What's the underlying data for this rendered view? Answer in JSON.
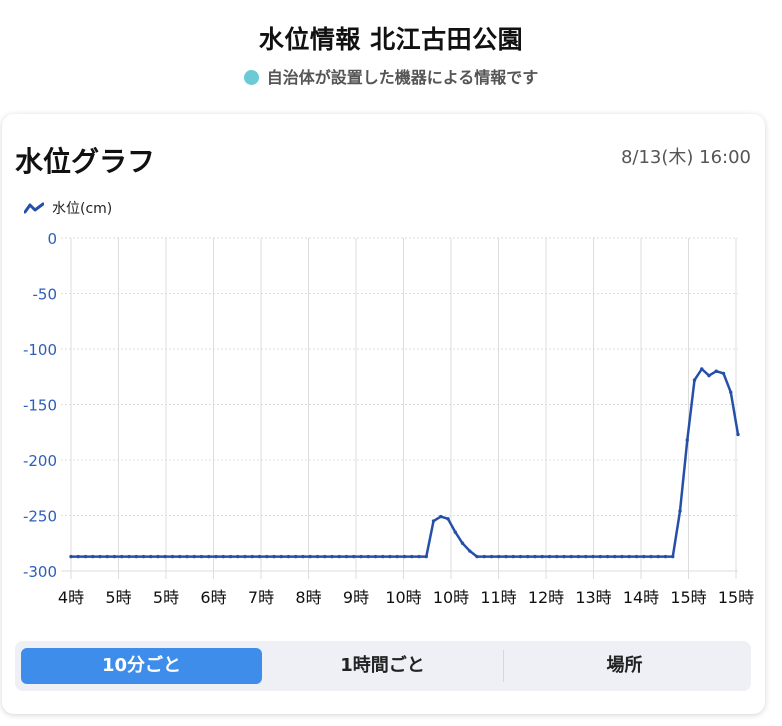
{
  "header": {
    "title": "水位情報 北江古田公園",
    "subtitle": "自治体が設置した機器による情報です",
    "dot_color": "#6cc9d6"
  },
  "card": {
    "title": "水位グラフ",
    "timestamp": "8/13(木) 16:00"
  },
  "tabs": [
    {
      "label": "10分ごと",
      "active": true
    },
    {
      "label": "1時間ごと",
      "active": false
    },
    {
      "label": "場所",
      "active": false
    }
  ],
  "chart_data": {
    "type": "line",
    "legend": "水位(cm)",
    "line_color": "#2650a8",
    "y_tick_color": "#2c5fb8",
    "ylim": [
      -300,
      0
    ],
    "yticks": [
      0,
      -50,
      -100,
      -150,
      -200,
      -250,
      -300
    ],
    "ytick_labels": [
      "0",
      "-50",
      "-100",
      "-150",
      "-200",
      "-250",
      "-300"
    ],
    "xtick_labels": [
      "4時",
      "5時",
      "5時",
      "6時",
      "7時",
      "8時",
      "9時",
      "10時",
      "10時",
      "11時",
      "12時",
      "13時",
      "14時",
      "15時",
      "15時"
    ],
    "grid": true,
    "series": [
      {
        "name": "水位(cm)",
        "values": [
          -287,
          -287,
          -287,
          -287,
          -287,
          -287,
          -287,
          -287,
          -287,
          -287,
          -287,
          -287,
          -287,
          -287,
          -287,
          -287,
          -287,
          -287,
          -287,
          -287,
          -287,
          -287,
          -287,
          -287,
          -287,
          -287,
          -287,
          -287,
          -287,
          -287,
          -287,
          -287,
          -287,
          -287,
          -287,
          -287,
          -287,
          -287,
          -287,
          -287,
          -287,
          -287,
          -287,
          -287,
          -287,
          -287,
          -287,
          -287,
          -287,
          -287,
          -255,
          -251,
          -253,
          -265,
          -275,
          -282,
          -287,
          -287,
          -287,
          -287,
          -287,
          -287,
          -287,
          -287,
          -287,
          -287,
          -287,
          -287,
          -287,
          -287,
          -287,
          -287,
          -287,
          -287,
          -287,
          -287,
          -287,
          -287,
          -287,
          -287,
          -287,
          -287,
          -287,
          -287,
          -246,
          -182,
          -128,
          -118,
          -124,
          -120,
          -122,
          -139,
          -177
        ]
      }
    ]
  }
}
